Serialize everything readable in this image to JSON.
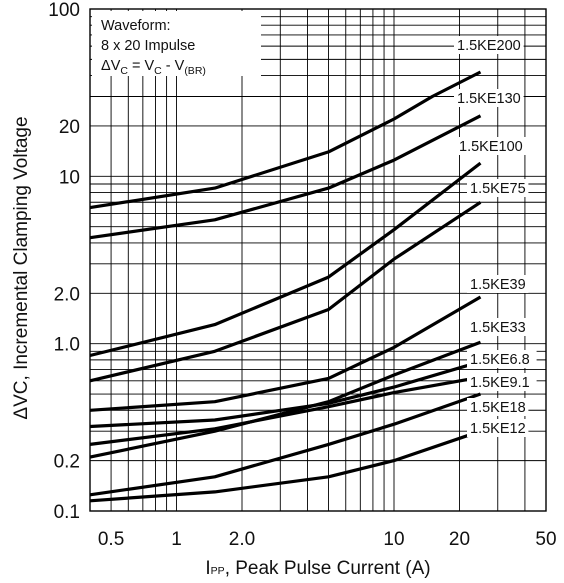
{
  "chart_data": {
    "type": "line",
    "xlabel": {
      "main": "I",
      "sub": "PP",
      "rest": ", Peak Pulse Current (A)"
    },
    "ylabel": "ΔVC, Incremental Clamping Voltage",
    "xscale": "log",
    "yscale": "log",
    "xlim": [
      0.4,
      50
    ],
    "ylim": [
      0.1,
      100
    ],
    "xticks": [
      "0.5",
      "1",
      "2.0",
      "10",
      "20",
      "50"
    ],
    "xtick_values": [
      0.5,
      1,
      2,
      10,
      20,
      50
    ],
    "yticks": [
      "100",
      "20",
      "10",
      "2.0",
      "1.0",
      "0.2",
      "0.1"
    ],
    "ytick_values": [
      100,
      20,
      10,
      2,
      1,
      0.2,
      0.1
    ],
    "grid": true,
    "annotation": {
      "line1": "Waveform:",
      "line2": "8 x 20 Impulse",
      "line3": {
        "delta": "Δ",
        "v1": "V",
        "s1": "C",
        "eq": " = V",
        "s2": "C",
        "minus": " - V",
        "s3": "(BR)"
      }
    },
    "series": [
      {
        "name": "1.5KE200",
        "x": [
          0.4,
          1.5,
          5,
          10,
          15,
          25
        ],
        "y": [
          6.5,
          8.5,
          14,
          22,
          30,
          42
        ]
      },
      {
        "name": "1.5KE130",
        "x": [
          0.4,
          1.5,
          5,
          10,
          25
        ],
        "y": [
          4.3,
          5.5,
          8.5,
          12.5,
          23
        ]
      },
      {
        "name": "1.5KE100",
        "x": [
          0.4,
          1.5,
          5,
          10,
          25
        ],
        "y": [
          0.85,
          1.3,
          2.5,
          4.8,
          12
        ]
      },
      {
        "name": "1.5KE75",
        "x": [
          0.4,
          1.5,
          5,
          10,
          25
        ],
        "y": [
          0.6,
          0.9,
          1.6,
          3.2,
          7
        ]
      },
      {
        "name": "1.5KE39",
        "x": [
          0.4,
          1.5,
          5,
          10,
          25
        ],
        "y": [
          0.4,
          0.45,
          0.62,
          0.95,
          1.9
        ]
      },
      {
        "name": "1.5KE33",
        "x": [
          0.4,
          1.5,
          5,
          10,
          25
        ],
        "y": [
          0.21,
          0.3,
          0.45,
          0.65,
          1.02
        ]
      },
      {
        "name": "1.5KE6.8",
        "x": [
          0.4,
          1.5,
          5,
          10,
          25
        ],
        "y": [
          0.32,
          0.35,
          0.44,
          0.55,
          0.78
        ]
      },
      {
        "name": "1.5KE9.1",
        "x": [
          0.4,
          1.5,
          5,
          10,
          25
        ],
        "y": [
          0.25,
          0.31,
          0.42,
          0.51,
          0.63
        ]
      },
      {
        "name": "1.5KE18",
        "x": [
          0.4,
          1.5,
          5,
          10,
          25
        ],
        "y": [
          0.125,
          0.16,
          0.25,
          0.33,
          0.5
        ]
      },
      {
        "name": "1.5KE12",
        "x": [
          0.4,
          1.5,
          5,
          10,
          25
        ],
        "y": [
          0.115,
          0.13,
          0.16,
          0.2,
          0.3
        ]
      }
    ]
  }
}
